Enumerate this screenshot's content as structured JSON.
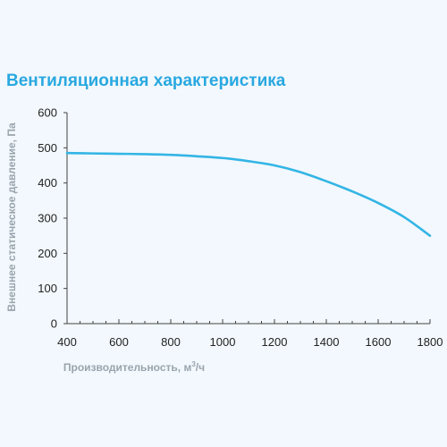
{
  "chart_data": {
    "type": "line",
    "title": "Вентиляционная характеристика",
    "xlabel": "Производительность, м³/ч",
    "xlabel_parts": {
      "base": "Производительность, м",
      "sup": "3",
      "tail": "/ч"
    },
    "ylabel": "Внешнее статическое давление, Па",
    "xlim": [
      400,
      1800
    ],
    "ylim": [
      0,
      600
    ],
    "x_ticks": [
      400,
      600,
      800,
      1000,
      1200,
      1400,
      1600,
      1800
    ],
    "y_ticks": [
      0,
      100,
      200,
      300,
      400,
      500,
      600
    ],
    "grid": false,
    "series": [
      {
        "color": "#33b5e5",
        "points": [
          [
            400,
            485
          ],
          [
            500,
            484
          ],
          [
            600,
            483
          ],
          [
            700,
            482
          ],
          [
            800,
            480
          ],
          [
            900,
            476
          ],
          [
            1000,
            471
          ],
          [
            1100,
            462
          ],
          [
            1200,
            450
          ],
          [
            1300,
            431
          ],
          [
            1400,
            405
          ],
          [
            1500,
            376
          ],
          [
            1600,
            343
          ],
          [
            1700,
            303
          ],
          [
            1800,
            250
          ]
        ]
      }
    ]
  }
}
